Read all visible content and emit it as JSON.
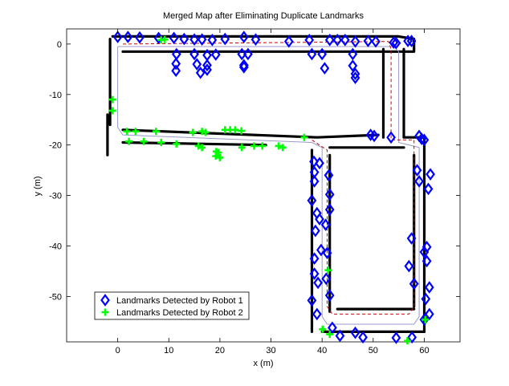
{
  "chart_data": {
    "type": "scatter",
    "title": "Merged Map after Eliminating Duplicate Landmarks",
    "xlabel": "x (m)",
    "ylabel": "y (m)",
    "xlim": [
      -10,
      67
    ],
    "ylim": [
      -59,
      3
    ],
    "xticks": [
      0,
      10,
      20,
      30,
      40,
      50,
      60
    ],
    "yticks": [
      0,
      -10,
      -20,
      -30,
      -40,
      -50
    ],
    "grid": false,
    "legend_position": "bottom-left",
    "legend": [
      {
        "label": "Landmarks Detected by Robot 1",
        "marker": "diamond",
        "color": "#0000ff"
      },
      {
        "label": "Landmarks Detected by Robot 2",
        "marker": "plus",
        "color": "#00ff00"
      }
    ],
    "walls": [
      {
        "name": "top-wall",
        "points": [
          [
            -1,
            1.5
          ],
          [
            55,
            1.5
          ],
          [
            58,
            1
          ],
          [
            58,
            -1.5
          ],
          [
            53,
            -1.5
          ],
          [
            1,
            -1.5
          ]
        ]
      },
      {
        "name": "left-wall",
        "points": [
          [
            -1.5,
            1
          ],
          [
            -1.5,
            -16
          ]
        ]
      },
      {
        "name": "left-stub",
        "points": [
          [
            -2,
            -14
          ],
          [
            -2,
            -22
          ]
        ]
      },
      {
        "name": "middle-wall-upper",
        "points": [
          [
            1,
            -17
          ],
          [
            39,
            -18.5
          ],
          [
            51,
            -18
          ]
        ]
      },
      {
        "name": "middle-wall-lower",
        "points": [
          [
            1,
            -19.5
          ],
          [
            29,
            -20
          ]
        ]
      },
      {
        "name": "inner-vertical",
        "points": [
          [
            52,
            -1
          ],
          [
            52,
            -18.5
          ]
        ]
      },
      {
        "name": "right-outer-upper",
        "points": [
          [
            56,
            -1
          ],
          [
            56,
            -18.5
          ],
          [
            60,
            -18.5
          ],
          [
            60,
            -25
          ]
        ]
      },
      {
        "name": "right-outer-lower",
        "points": [
          [
            60,
            -25
          ],
          [
            60,
            -57
          ]
        ]
      },
      {
        "name": "right-inner",
        "points": [
          [
            58,
            -22
          ],
          [
            58,
            -52
          ]
        ]
      },
      {
        "name": "bottom-inner",
        "points": [
          [
            43,
            -52.5
          ],
          [
            58,
            -52.5
          ]
        ]
      },
      {
        "name": "bottom-outer",
        "points": [
          [
            40,
            -57
          ],
          [
            60,
            -57
          ]
        ]
      },
      {
        "name": "lower-left-outer",
        "points": [
          [
            38,
            -21
          ],
          [
            38,
            -57
          ]
        ]
      },
      {
        "name": "lower-left-inner",
        "points": [
          [
            41.5,
            -22
          ],
          [
            41.5,
            -53
          ]
        ]
      },
      {
        "name": "lower-top-wall",
        "points": [
          [
            41.5,
            -20.5
          ],
          [
            56,
            -20.5
          ]
        ]
      }
    ],
    "trajectories": [
      {
        "name": "robot-path-1",
        "color": "#9999cc",
        "dash": false,
        "points": [
          [
            0,
            -0.5
          ],
          [
            54,
            -0.5
          ],
          [
            55,
            -1.5
          ],
          [
            55,
            -19.5
          ],
          [
            59,
            -20.5
          ],
          [
            59,
            -54
          ],
          [
            58,
            -55.5
          ],
          [
            41,
            -55.5
          ],
          [
            40,
            -54
          ],
          [
            40,
            -20.5
          ],
          [
            38,
            -19.5
          ],
          [
            1,
            -18
          ],
          [
            0,
            -16.5
          ],
          [
            0,
            -0.5
          ]
        ]
      },
      {
        "name": "robot-path-2",
        "color": "#d00000",
        "dash": true,
        "points": [
          [
            1,
            0
          ],
          [
            53,
            0.5
          ],
          [
            53.5,
            -1
          ],
          [
            53.5,
            -19
          ],
          [
            58,
            -19
          ],
          [
            58,
            -52
          ],
          [
            57,
            -53.5
          ],
          [
            42,
            -53.5
          ],
          [
            41,
            -52
          ],
          [
            41,
            -21
          ],
          [
            38,
            -19
          ]
        ]
      }
    ],
    "series": [
      {
        "name": "Landmarks Detected by Robot 1",
        "marker": "diamond",
        "color": "#0000ff",
        "points": [
          [
            0,
            1.4
          ],
          [
            2,
            1.4
          ],
          [
            4.3,
            1.3
          ],
          [
            8,
            1.2
          ],
          [
            11,
            1.2
          ],
          [
            13,
            1
          ],
          [
            15,
            0.9
          ],
          [
            16.5,
            0.9
          ],
          [
            18.5,
            0.8
          ],
          [
            21,
            1
          ],
          [
            24.7,
            1.4
          ],
          [
            27,
            0.9
          ],
          [
            33.5,
            0.5
          ],
          [
            37.5,
            0.8
          ],
          [
            41.5,
            0.8
          ],
          [
            43,
            0.8
          ],
          [
            44.5,
            0.8
          ],
          [
            46.5,
            0.5
          ],
          [
            49,
            0.6
          ],
          [
            50.5,
            0.5
          ],
          [
            54,
            0.3
          ],
          [
            54.5,
            0.2
          ],
          [
            56.8,
            0.6
          ],
          [
            57.5,
            0.6
          ],
          [
            11.5,
            -2
          ],
          [
            15,
            -2
          ],
          [
            17.5,
            -2.2
          ],
          [
            19.2,
            -2.1
          ],
          [
            24.3,
            -2
          ],
          [
            25.5,
            -2
          ],
          [
            38,
            -2
          ],
          [
            40,
            -2
          ],
          [
            46,
            -2
          ],
          [
            11.4,
            -3.9
          ],
          [
            15.5,
            -4
          ],
          [
            17.5,
            -4.2
          ],
          [
            11.4,
            -5.3
          ],
          [
            16.2,
            -5.7
          ],
          [
            17.5,
            -5.1
          ],
          [
            24.7,
            -4.2
          ],
          [
            24.7,
            -4.6
          ],
          [
            40.5,
            -4.8
          ],
          [
            46,
            -4.3
          ],
          [
            46.5,
            -5.9
          ],
          [
            46.5,
            -6.7
          ],
          [
            49.5,
            -18
          ],
          [
            50.2,
            -18.2
          ],
          [
            53.5,
            -18.5
          ],
          [
            59,
            -18.2
          ],
          [
            59.5,
            -18.8
          ],
          [
            60,
            -19
          ],
          [
            38.4,
            -23.3
          ],
          [
            39.5,
            -23.6
          ],
          [
            38.5,
            -25.4
          ],
          [
            38.5,
            -27.2
          ],
          [
            38,
            -31
          ],
          [
            39,
            -33.5
          ],
          [
            39.5,
            -34.7
          ],
          [
            38.7,
            -37
          ],
          [
            39.8,
            -40.8
          ],
          [
            38.5,
            -42.5
          ],
          [
            38.5,
            -45.5
          ],
          [
            39.2,
            -47.3
          ],
          [
            38,
            -50.8
          ],
          [
            39,
            -53.5
          ],
          [
            41.3,
            -26
          ],
          [
            41.5,
            -29.8
          ],
          [
            41.5,
            -32.8
          ],
          [
            40.7,
            -35.8
          ],
          [
            41,
            -41.4
          ],
          [
            40.8,
            -46.5
          ],
          [
            41.5,
            -49.8
          ],
          [
            58.6,
            -25
          ],
          [
            61.2,
            -25.8
          ],
          [
            59,
            -27.2
          ],
          [
            60.8,
            -28.7
          ],
          [
            57.5,
            -38.5
          ],
          [
            60.5,
            -40.2
          ],
          [
            60,
            -41.2
          ],
          [
            60.5,
            -43
          ],
          [
            57,
            -44
          ],
          [
            58,
            -47.5
          ],
          [
            61,
            -48.2
          ],
          [
            60.3,
            -50.5
          ],
          [
            61,
            -53.5
          ],
          [
            60,
            -54.6
          ],
          [
            42,
            -56.2
          ],
          [
            46.5,
            -57.2
          ],
          [
            43.5,
            -57.8
          ],
          [
            48,
            -58.1
          ],
          [
            54.5,
            -58.2
          ],
          [
            57.6,
            -58.1
          ]
        ]
      },
      {
        "name": "Landmarks Detected by Robot 2",
        "marker": "plus",
        "color": "#00ff00",
        "points": [
          [
            8.5,
            0.8
          ],
          [
            9.2,
            0.9
          ],
          [
            -1,
            -11
          ],
          [
            -1,
            -13.2
          ],
          [
            1.8,
            -17.3
          ],
          [
            3.5,
            -17.3
          ],
          [
            7.5,
            -17.3
          ],
          [
            14.7,
            -17.5
          ],
          [
            16.5,
            -17.3
          ],
          [
            17.2,
            -17.5
          ],
          [
            21,
            -17
          ],
          [
            22,
            -17
          ],
          [
            23,
            -17
          ],
          [
            24.2,
            -17.2
          ],
          [
            36.5,
            -18.5
          ],
          [
            2.2,
            -19.3
          ],
          [
            5.1,
            -19.3
          ],
          [
            8.5,
            -19.5
          ],
          [
            11.5,
            -19.8
          ],
          [
            15.8,
            -20.2
          ],
          [
            16.5,
            -20.5
          ],
          [
            19.3,
            -21.3
          ],
          [
            19.7,
            -21.5
          ],
          [
            19.2,
            -22.2
          ],
          [
            20,
            -22.5
          ],
          [
            24.3,
            -20.5
          ],
          [
            26.7,
            -20.2
          ],
          [
            28.3,
            -20.2
          ],
          [
            31.5,
            -20.2
          ],
          [
            32.3,
            -20.5
          ],
          [
            41.2,
            -44.8
          ],
          [
            40.1,
            -56.5
          ],
          [
            41.5,
            -57.5
          ],
          [
            56.7,
            -58.8
          ],
          [
            60.2,
            -54.6
          ]
        ]
      }
    ]
  }
}
